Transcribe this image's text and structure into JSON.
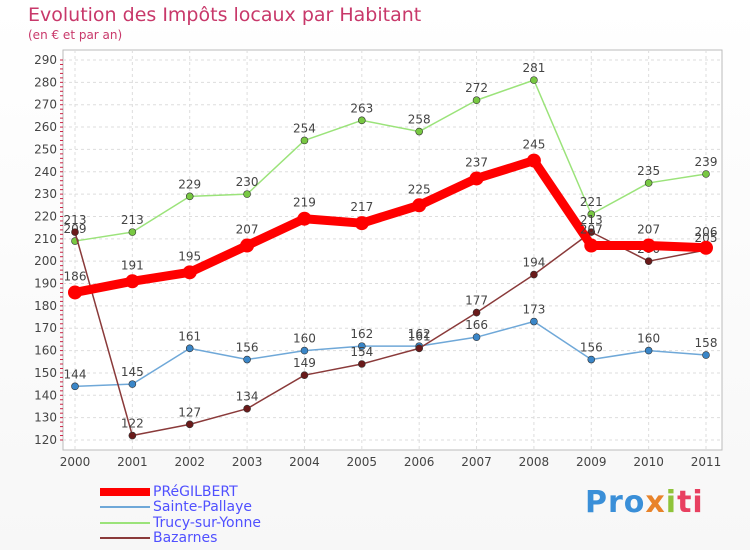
{
  "chart_data": {
    "type": "line",
    "title": "Evolution des Impôts locaux par Habitant",
    "subtitle": "(en € et par an)",
    "x": [
      "2000",
      "2001",
      "2002",
      "2003",
      "2004",
      "2005",
      "2006",
      "2007",
      "2008",
      "2009",
      "2010",
      "2011"
    ],
    "ylim": [
      120,
      290
    ],
    "yticks": [
      "120",
      "130",
      "140",
      "150",
      "160",
      "170",
      "180",
      "190",
      "200",
      "210",
      "220",
      "230",
      "240",
      "250",
      "260",
      "270",
      "280",
      "290"
    ],
    "grid": true,
    "legend": "bottom-left",
    "series": [
      {
        "name": "Sainte-Pallaye",
        "color": "#6fa8d8",
        "marker": "#3a86c8",
        "values": [
          144,
          145,
          161,
          156,
          160,
          162,
          162,
          166,
          173,
          156,
          160,
          158
        ],
        "labels": [
          "144",
          "145",
          "161",
          "156",
          "160",
          "162",
          "162",
          "166",
          "173",
          "156",
          "160",
          "158"
        ]
      },
      {
        "name": "Trucy-sur-Yonne",
        "color": "#9be37a",
        "marker": "#78c842",
        "values": [
          209,
          213,
          229,
          230,
          254,
          263,
          258,
          272,
          281,
          221,
          235,
          239
        ],
        "labels": [
          "209",
          "213",
          "229",
          "230",
          "254",
          "263",
          "258",
          "272",
          "281",
          "221",
          "235",
          "239"
        ]
      },
      {
        "name": "Bazarnes",
        "color": "#8a3a3a",
        "marker": "#6a1a1a",
        "values": [
          213,
          122,
          127,
          134,
          149,
          154,
          161,
          177,
          194,
          213,
          200,
          205
        ],
        "labels": [
          "213",
          "122",
          "127",
          "134",
          "149",
          "154",
          "161",
          "177",
          "194",
          "213",
          "200",
          "205"
        ]
      },
      {
        "name": "PRéGILBERT",
        "color": "#ff0000",
        "marker": "#ff0000",
        "values": [
          186,
          191,
          195,
          207,
          219,
          217,
          225,
          237,
          245,
          207,
          207,
          206
        ],
        "labels": [
          "186",
          "191",
          "195",
          "207",
          "219",
          "217",
          "225",
          "237",
          "245",
          "207",
          "207",
          "206"
        ]
      }
    ],
    "legend_order": [
      "PRéGILBERT",
      "Sainte-Pallaye",
      "Trucy-sur-Yonne",
      "Bazarnes"
    ]
  },
  "logo": {
    "p1": "Pro",
    "p2": "x",
    "p3": "i",
    "p4": "ti"
  }
}
